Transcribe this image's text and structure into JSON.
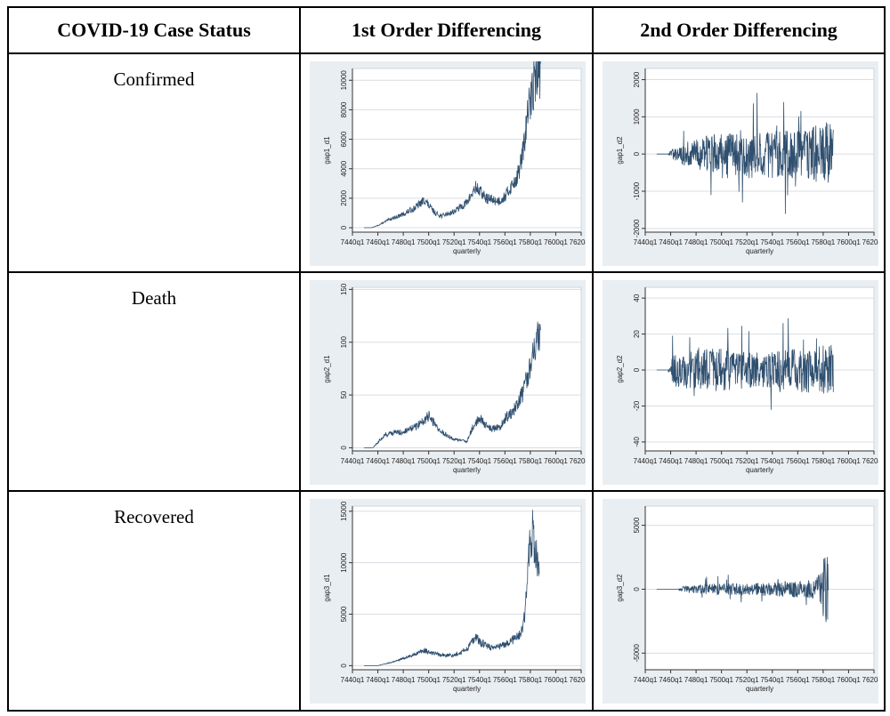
{
  "table": {
    "headers": [
      "COVID-19 Case Status",
      "1st Order Differencing",
      "2nd Order Differencing"
    ],
    "rows": [
      {
        "status": "Confirmed"
      },
      {
        "status": "Death"
      },
      {
        "status": "Recovered"
      }
    ]
  },
  "colors": {
    "line": "#2f4f6f",
    "plot_bg": "#ffffff",
    "panel_bg": "#e9eef2",
    "grid": "#d9dde2"
  },
  "chart_data": [
    {
      "type": "line",
      "ylabel": "gap1_d1",
      "xlabel": "quarterly",
      "xticks": [
        "7440q1",
        "7460q1",
        "7480q1",
        "7500q1",
        "7520q1",
        "7540q1",
        "7560q1",
        "7580q1",
        "7600q1",
        "7620q1"
      ],
      "yticks": [
        0,
        2000,
        4000,
        6000,
        8000,
        10000
      ],
      "ylim": [
        -300,
        10800
      ],
      "x_range": [
        7440,
        7620
      ],
      "data_x_range": [
        7449,
        7588
      ],
      "grid": true,
      "anchors_x": [
        7449,
        7455,
        7460,
        7470,
        7480,
        7490,
        7497,
        7500,
        7505,
        7510,
        7520,
        7530,
        7537,
        7540,
        7545,
        7550,
        7555,
        7560,
        7565,
        7570,
        7574,
        7576,
        7578,
        7580,
        7582,
        7584,
        7586,
        7588
      ],
      "anchors_y": [
        0,
        0,
        150,
        600,
        900,
        1400,
        1900,
        1500,
        1000,
        800,
        1100,
        1700,
        2700,
        2500,
        2000,
        1900,
        1800,
        2100,
        2800,
        3500,
        5000,
        6200,
        7800,
        8500,
        9600,
        10200,
        10500,
        10700
      ]
    },
    {
      "type": "line",
      "ylabel": "gap1_d2",
      "xlabel": "quarterly",
      "xticks": [
        "7440q1",
        "7460q1",
        "7480q1",
        "7500q1",
        "7520q1",
        "7540q1",
        "7560q1",
        "7580q1",
        "7600q1",
        "7620q1"
      ],
      "yticks": [
        -2000,
        -1000,
        0,
        1000,
        2000
      ],
      "ylim": [
        -2100,
        2300
      ],
      "x_range": [
        7440,
        7620
      ],
      "data_x_range": [
        7449,
        7588
      ],
      "grid": true,
      "anchors_x": [
        7449,
        7458,
        7462,
        7470,
        7480,
        7490,
        7500,
        7510,
        7520,
        7530,
        7540,
        7550,
        7560,
        7570,
        7580,
        7588
      ],
      "anchors_y": [
        0,
        0,
        200,
        300,
        400,
        500,
        650,
        650,
        650,
        650,
        650,
        650,
        650,
        700,
        850,
        900
      ]
    },
    {
      "type": "line",
      "ylabel": "gap2_d1",
      "xlabel": "quarterly",
      "xticks": [
        "7440q1",
        "7460q1",
        "7480q1",
        "7500q1",
        "7520q1",
        "7540q1",
        "7560q1",
        "7580q1",
        "7600q1",
        "7620q1"
      ],
      "yticks": [
        0,
        50,
        100,
        150
      ],
      "ylim": [
        -3,
        152
      ],
      "x_range": [
        7440,
        7620
      ],
      "data_x_range": [
        7449,
        7588
      ],
      "grid": true,
      "anchors_x": [
        7449,
        7456,
        7460,
        7465,
        7470,
        7480,
        7490,
        7498,
        7500,
        7505,
        7510,
        7520,
        7530,
        7535,
        7540,
        7545,
        7550,
        7556,
        7560,
        7565,
        7570,
        7575,
        7578,
        7580,
        7584,
        7586,
        7588
      ],
      "anchors_y": [
        0,
        0,
        5,
        12,
        14,
        15,
        20,
        28,
        30,
        22,
        15,
        8,
        6,
        20,
        28,
        22,
        18,
        20,
        28,
        32,
        40,
        55,
        70,
        80,
        95,
        105,
        100
      ]
    },
    {
      "type": "line",
      "ylabel": "gap2_d2",
      "xlabel": "quarterly",
      "xticks": [
        "7440q1",
        "7460q1",
        "7480q1",
        "7500q1",
        "7520q1",
        "7540q1",
        "7560q1",
        "7580q1",
        "7600q1",
        "7620q1"
      ],
      "yticks": [
        -40,
        -20,
        0,
        20,
        40
      ],
      "ylim": [
        -45,
        46
      ],
      "x_range": [
        7440,
        7620
      ],
      "data_x_range": [
        7449,
        7588
      ],
      "grid": true,
      "anchors_x": [
        7449,
        7458,
        7462,
        7470,
        7480,
        7490,
        7500,
        7510,
        7520,
        7530,
        7540,
        7550,
        7560,
        7570,
        7580,
        7588
      ],
      "anchors_y": [
        0,
        0,
        9,
        10,
        11,
        12,
        12,
        11,
        10,
        10,
        10,
        11,
        12,
        13,
        14,
        15
      ]
    },
    {
      "type": "line",
      "ylabel": "gap3_d1",
      "xlabel": "quarterly",
      "xticks": [
        "7440q1",
        "7460q1",
        "7480q1",
        "7500q1",
        "7520q1",
        "7540q1",
        "7560q1",
        "7580q1",
        "7600q1",
        "7620q1"
      ],
      "yticks": [
        0,
        5000,
        10000,
        15000
      ],
      "ylim": [
        -400,
        15500
      ],
      "x_range": [
        7440,
        7620
      ],
      "data_x_range": [
        7449,
        7587
      ],
      "grid": true,
      "anchors_x": [
        7449,
        7460,
        7470,
        7480,
        7490,
        7497,
        7500,
        7510,
        7520,
        7530,
        7537,
        7540,
        7550,
        7560,
        7570,
        7574,
        7576,
        7578,
        7580,
        7582,
        7584,
        7586,
        7587
      ],
      "anchors_y": [
        0,
        0,
        300,
        700,
        1100,
        1500,
        1300,
        1000,
        1000,
        1600,
        2900,
        2300,
        1700,
        2000,
        2800,
        3500,
        5500,
        9000,
        12500,
        13000,
        11000,
        9500,
        9000
      ]
    },
    {
      "type": "line",
      "ylabel": "gap3_d2",
      "xlabel": "quarterly",
      "xticks": [
        "7440q1",
        "7460q1",
        "7480q1",
        "7500q1",
        "7520q1",
        "7540q1",
        "7560q1",
        "7580q1",
        "7600q1",
        "7620q1"
      ],
      "yticks": [
        -5000,
        0,
        5000
      ],
      "ylim": [
        -6300,
        6500
      ],
      "x_range": [
        7440,
        7620
      ],
      "data_x_range": [
        7449,
        7584
      ],
      "grid": true,
      "anchors_x": [
        7449,
        7466,
        7470,
        7480,
        7490,
        7500,
        7510,
        7520,
        7530,
        7540,
        7550,
        7560,
        7570,
        7575,
        7578,
        7580,
        7582,
        7584
      ],
      "anchors_y": [
        0,
        0,
        250,
        350,
        400,
        450,
        450,
        450,
        500,
        550,
        600,
        650,
        700,
        900,
        1400,
        2500,
        3500,
        3500
      ]
    }
  ]
}
